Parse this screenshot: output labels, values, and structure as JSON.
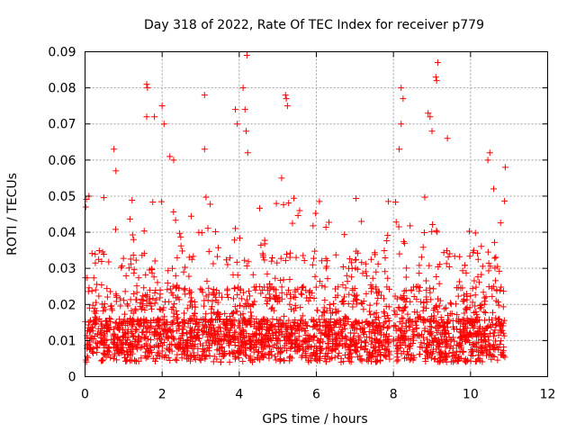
{
  "chart_data": {
    "type": "scatter",
    "title": "Day 318 of 2022, Rate Of TEC Index for receiver p779",
    "xlabel": "GPS time / hours",
    "ylabel": "ROTI / TECUs",
    "xlim": [
      0,
      12
    ],
    "ylim": [
      0,
      0.09
    ],
    "x_ticks": [
      "0",
      "2",
      "4",
      "6",
      "8",
      "10",
      "12"
    ],
    "y_ticks": [
      "0",
      "0.01",
      "0.02",
      "0.03",
      "0.04",
      "0.05",
      "0.06",
      "0.07",
      "0.08",
      "0.09"
    ],
    "grid": true,
    "marker": "plus",
    "color": "#ff0000",
    "data_gap": [
      7.9,
      8.0
    ],
    "series": [
      {
        "name": "ROTI",
        "x_range": [
          0,
          10.9
        ],
        "notable_points": [
          {
            "x": 0.02,
            "y": 0.047
          },
          {
            "x": 0.1,
            "y": 0.05
          },
          {
            "x": 0.75,
            "y": 0.063
          },
          {
            "x": 0.8,
            "y": 0.057
          },
          {
            "x": 1.6,
            "y": 0.081
          },
          {
            "x": 1.62,
            "y": 0.08
          },
          {
            "x": 1.6,
            "y": 0.072
          },
          {
            "x": 1.8,
            "y": 0.072
          },
          {
            "x": 2.0,
            "y": 0.075
          },
          {
            "x": 2.05,
            "y": 0.07
          },
          {
            "x": 2.2,
            "y": 0.061
          },
          {
            "x": 2.3,
            "y": 0.06
          },
          {
            "x": 3.1,
            "y": 0.078
          },
          {
            "x": 3.1,
            "y": 0.063
          },
          {
            "x": 3.9,
            "y": 0.074
          },
          {
            "x": 3.95,
            "y": 0.07
          },
          {
            "x": 4.1,
            "y": 0.08
          },
          {
            "x": 4.15,
            "y": 0.074
          },
          {
            "x": 4.2,
            "y": 0.089
          },
          {
            "x": 4.18,
            "y": 0.068
          },
          {
            "x": 4.22,
            "y": 0.062
          },
          {
            "x": 5.2,
            "y": 0.078
          },
          {
            "x": 5.22,
            "y": 0.077
          },
          {
            "x": 5.25,
            "y": 0.075
          },
          {
            "x": 5.1,
            "y": 0.055
          },
          {
            "x": 8.2,
            "y": 0.08
          },
          {
            "x": 8.25,
            "y": 0.077
          },
          {
            "x": 8.2,
            "y": 0.07
          },
          {
            "x": 8.15,
            "y": 0.063
          },
          {
            "x": 8.9,
            "y": 0.073
          },
          {
            "x": 8.95,
            "y": 0.072
          },
          {
            "x": 9.0,
            "y": 0.068
          },
          {
            "x": 9.1,
            "y": 0.083
          },
          {
            "x": 9.15,
            "y": 0.087
          },
          {
            "x": 9.12,
            "y": 0.082
          },
          {
            "x": 9.4,
            "y": 0.066
          },
          {
            "x": 10.5,
            "y": 0.062
          },
          {
            "x": 10.45,
            "y": 0.06
          },
          {
            "x": 10.6,
            "y": 0.052
          },
          {
            "x": 10.9,
            "y": 0.058
          }
        ]
      }
    ]
  }
}
